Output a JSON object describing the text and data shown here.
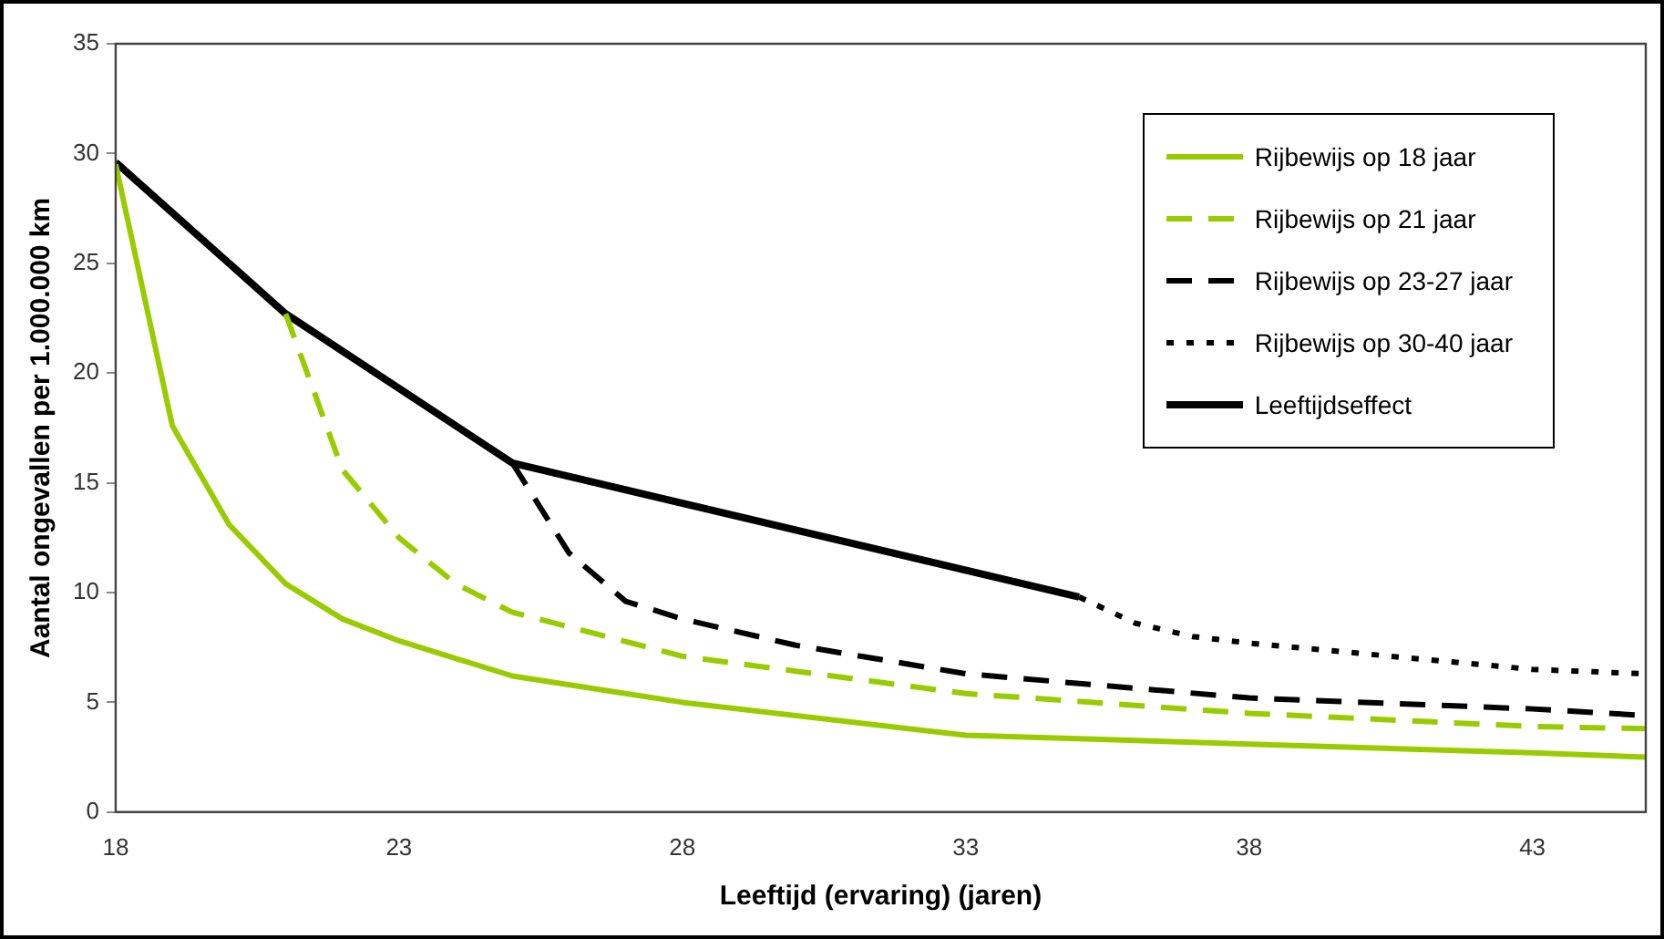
{
  "chart_data": {
    "type": "line",
    "xlabel": "Leeftijd (ervaring) (jaren)",
    "ylabel": "Aantal ongevallen per 1.000.000 km",
    "xlim": [
      18,
      45
    ],
    "xticks": [
      18,
      23,
      28,
      33,
      38,
      43
    ],
    "ylim": [
      0,
      35
    ],
    "yticks": [
      0,
      5,
      10,
      15,
      20,
      25,
      30,
      35
    ],
    "grid": false,
    "legend": "top right",
    "marker": "none",
    "series": [
      {
        "name": "Rijbewijs op 18 jaar",
        "color": "#99cc00",
        "line_style": "solid",
        "x": [
          18,
          19,
          20,
          21,
          22,
          23,
          25,
          28,
          33,
          38,
          43,
          45
        ],
        "values": [
          29.5,
          17.6,
          13.1,
          10.4,
          8.8,
          7.8,
          6.2,
          5.0,
          3.5,
          3.1,
          2.7,
          2.5
        ]
      },
      {
        "name": "Rijbewijs op 21 jaar",
        "color": "#99cc00",
        "line_style": "dashed",
        "x": [
          21,
          22,
          23,
          24,
          25,
          28,
          33,
          38,
          43,
          45
        ],
        "values": [
          22.7,
          15.6,
          12.5,
          10.4,
          9.1,
          7.1,
          5.4,
          4.5,
          3.9,
          3.8
        ]
      },
      {
        "name": "Rijbewijs op 23-27 jaar",
        "color": "#000000",
        "line_style": "dashed",
        "x": [
          25,
          26,
          27,
          28,
          30,
          33,
          38,
          43,
          45
        ],
        "values": [
          15.9,
          11.8,
          9.6,
          8.8,
          7.6,
          6.3,
          5.2,
          4.7,
          4.4
        ]
      },
      {
        "name": "Rijbewijs op 30-40 jaar",
        "color": "#000000",
        "line_style": "dotted",
        "x": [
          35,
          36,
          37,
          38,
          43,
          45
        ],
        "values": [
          9.8,
          8.6,
          8.0,
          7.7,
          6.5,
          6.3
        ]
      },
      {
        "name": "Leeftijdseffect",
        "color": "#000000",
        "line_style": "solid",
        "x": [
          18,
          21,
          25,
          35
        ],
        "values": [
          29.6,
          22.7,
          15.9,
          9.8
        ]
      }
    ]
  }
}
